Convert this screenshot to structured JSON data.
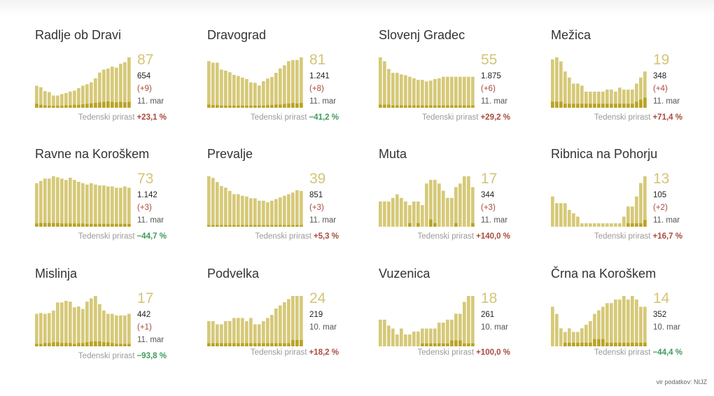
{
  "source": "vir podatkov: NIJZ",
  "growth_label": "Tedenski prirast",
  "colors": {
    "bar": "#d6c978",
    "bar_dark": "#b9a326",
    "up": "#a94a3c",
    "down": "#3f9a5b"
  },
  "cards": [
    {
      "title": "Radlje ob Dravi",
      "big": "87",
      "total": "654",
      "delta": "(+9)",
      "date": "11. mar",
      "growth": "+23,1 %",
      "trend": "up"
    },
    {
      "title": "Dravograd",
      "big": "81",
      "total": "1.241",
      "delta": "(+8)",
      "date": "11. mar",
      "growth": "−41,2 %",
      "trend": "down"
    },
    {
      "title": "Slovenj Gradec",
      "big": "55",
      "total": "1.875",
      "delta": "(+6)",
      "date": "11. mar",
      "growth": "+29,2 %",
      "trend": "up"
    },
    {
      "title": "Mežica",
      "big": "19",
      "total": "348",
      "delta": "(+4)",
      "date": "11. mar",
      "growth": "+71,4 %",
      "trend": "up"
    },
    {
      "title": "Ravne na Koroškem",
      "big": "73",
      "total": "1.142",
      "delta": "(+3)",
      "date": "11. mar",
      "growth": "−44,7 %",
      "trend": "down"
    },
    {
      "title": "Prevalje",
      "big": "39",
      "total": "851",
      "delta": "(+3)",
      "date": "11. mar",
      "growth": "+5,3 %",
      "trend": "up"
    },
    {
      "title": "Muta",
      "big": "17",
      "total": "344",
      "delta": "(+3)",
      "date": "11. mar",
      "growth": "+140,0 %",
      "trend": "up"
    },
    {
      "title": "Ribnica na Pohorju",
      "big": "13",
      "total": "105",
      "delta": "(+2)",
      "date": "11. mar",
      "growth": "+16,7 %",
      "trend": "up"
    },
    {
      "title": "Mislinja",
      "big": "17",
      "total": "442",
      "delta": "(+1)",
      "date": "11. mar",
      "growth": "−93,8 %",
      "trend": "down"
    },
    {
      "title": "Podvelka",
      "big": "24",
      "total": "219",
      "delta": "",
      "date": "10. mar",
      "growth": "+18,2 %",
      "trend": "up"
    },
    {
      "title": "Vuzenica",
      "big": "18",
      "total": "261",
      "delta": "",
      "date": "10. mar",
      "growth": "+100,0 %",
      "trend": "up"
    },
    {
      "title": "Črna na Koroškem",
      "big": "14",
      "total": "352",
      "delta": "",
      "date": "10. mar",
      "growth": "−44,4 %",
      "trend": "down"
    }
  ],
  "chart_data": [
    {
      "type": "bar",
      "series": [
        {
          "values": [
            45,
            42,
            34,
            32,
            25,
            25,
            28,
            30,
            33,
            35,
            40,
            45,
            48,
            52,
            60,
            72,
            78,
            80,
            84,
            82,
            90,
            93,
            103
          ]
        },
        {
          "values": [
            8,
            6,
            5,
            4,
            4,
            4,
            4,
            5,
            5,
            6,
            6,
            7,
            8,
            9,
            10,
            11,
            12,
            13,
            12,
            11,
            12,
            11,
            12
          ]
        }
      ]
    },
    {
      "type": "bar",
      "series": [
        {
          "values": [
            88,
            85,
            85,
            72,
            70,
            67,
            62,
            60,
            57,
            54,
            48,
            47,
            42,
            50,
            55,
            58,
            66,
            74,
            80,
            88,
            90,
            90,
            95
          ]
        },
        {
          "values": [
            6,
            5,
            5,
            4,
            4,
            4,
            4,
            4,
            4,
            4,
            4,
            4,
            4,
            4,
            5,
            5,
            6,
            6,
            7,
            8,
            9,
            8,
            9
          ]
        }
      ]
    },
    {
      "type": "bar",
      "series": [
        {
          "values": [
            65,
            60,
            50,
            45,
            45,
            43,
            42,
            40,
            38,
            36,
            36,
            34,
            35,
            37,
            38,
            40,
            40,
            40,
            40,
            40,
            40,
            40,
            40
          ]
        },
        {
          "values": [
            4,
            4,
            4,
            3,
            3,
            3,
            3,
            3,
            3,
            3,
            3,
            3,
            3,
            3,
            3,
            3,
            3,
            3,
            3,
            3,
            3,
            3,
            3
          ]
        }
      ]
    },
    {
      "type": "bar",
      "series": [
        {
          "values": [
            24,
            25,
            23,
            18,
            15,
            12,
            12,
            11,
            8,
            8,
            8,
            8,
            8,
            9,
            9,
            8,
            10,
            9,
            9,
            9,
            12,
            15,
            18
          ]
        },
        {
          "values": [
            3,
            3,
            3,
            2,
            2,
            2,
            2,
            2,
            2,
            2,
            2,
            2,
            2,
            2,
            2,
            2,
            2,
            2,
            2,
            2,
            3,
            4,
            5
          ]
        }
      ]
    },
    {
      "type": "bar",
      "series": [
        {
          "values": [
            95,
            100,
            105,
            105,
            110,
            108,
            105,
            102,
            107,
            102,
            98,
            95,
            92,
            95,
            92,
            90,
            90,
            88,
            88,
            85,
            85,
            88,
            85
          ]
        },
        {
          "values": [
            7,
            8,
            8,
            8,
            8,
            8,
            7,
            7,
            7,
            7,
            7,
            7,
            6,
            6,
            6,
            6,
            6,
            6,
            6,
            6,
            6,
            6,
            6
          ]
        }
      ]
    },
    {
      "type": "bar",
      "series": [
        {
          "values": [
            62,
            60,
            55,
            50,
            48,
            44,
            40,
            40,
            38,
            37,
            35,
            35,
            32,
            32,
            30,
            32,
            34,
            36,
            38,
            40,
            42,
            45,
            44
          ]
        },
        {
          "values": [
            2,
            2,
            2,
            2,
            2,
            2,
            2,
            2,
            2,
            2,
            2,
            2,
            2,
            2,
            2,
            2,
            2,
            2,
            2,
            2,
            2,
            2,
            2
          ]
        }
      ]
    },
    {
      "type": "bar",
      "series": [
        {
          "values": [
            7,
            7,
            7,
            8,
            9,
            8,
            7,
            6,
            7,
            7,
            6,
            12,
            13,
            13,
            12,
            10,
            8,
            8,
            11,
            12,
            14,
            14,
            11
          ]
        },
        {
          "values": [
            0,
            0,
            0,
            0,
            0,
            0,
            0,
            1,
            0,
            1,
            0,
            0,
            2,
            1,
            0,
            0,
            0,
            0,
            1,
            0,
            0,
            0,
            1
          ]
        }
      ]
    },
    {
      "type": "bar",
      "series": [
        {
          "values": [
            9,
            7,
            7,
            7,
            5,
            4,
            3,
            1,
            1,
            1,
            1,
            1,
            1,
            1,
            1,
            1,
            1,
            3,
            6,
            6,
            9,
            13,
            15
          ]
        },
        {
          "values": [
            0,
            0,
            0,
            0,
            0,
            0,
            0,
            0,
            0,
            0,
            0,
            0,
            0,
            0,
            0,
            0,
            0,
            0,
            1,
            1,
            1,
            1,
            2
          ]
        }
      ]
    },
    {
      "type": "bar",
      "series": [
        {
          "values": [
            40,
            41,
            40,
            41,
            44,
            54,
            54,
            56,
            55,
            48,
            49,
            46,
            55,
            59,
            62,
            52,
            44,
            40,
            40,
            38,
            38,
            38,
            40
          ]
        },
        {
          "values": [
            3,
            3,
            4,
            4,
            5,
            5,
            4,
            4,
            4,
            3,
            4,
            4,
            5,
            6,
            6,
            6,
            5,
            5,
            4,
            3,
            3,
            3,
            3
          ]
        }
      ]
    },
    {
      "type": "bar",
      "series": [
        {
          "values": [
            8,
            8,
            7,
            7,
            8,
            8,
            9,
            9,
            9,
            8,
            9,
            7,
            7,
            8,
            9,
            10,
            12,
            13,
            14,
            15,
            16,
            16,
            16
          ]
        },
        {
          "values": [
            1,
            1,
            1,
            1,
            1,
            1,
            1,
            1,
            1,
            1,
            1,
            1,
            1,
            1,
            1,
            1,
            1,
            1,
            1,
            1,
            2,
            2,
            2
          ]
        }
      ]
    },
    {
      "type": "bar",
      "series": [
        {
          "values": [
            9,
            9,
            7,
            6,
            4,
            6,
            4,
            4,
            5,
            5,
            6,
            6,
            6,
            6,
            8,
            8,
            9,
            9,
            11,
            11,
            15,
            17,
            17
          ]
        },
        {
          "values": [
            0,
            0,
            0,
            0,
            0,
            0,
            0,
            0,
            0,
            0,
            1,
            1,
            1,
            1,
            1,
            1,
            1,
            2,
            2,
            2,
            1,
            1,
            1
          ]
        }
      ]
    },
    {
      "type": "bar",
      "series": [
        {
          "values": [
            11,
            9,
            5,
            4,
            5,
            4,
            4,
            5,
            6,
            7,
            9,
            10,
            11,
            12,
            12,
            13,
            13,
            14,
            13,
            14,
            13,
            11,
            11
          ]
        },
        {
          "values": [
            0,
            0,
            0,
            1,
            1,
            1,
            1,
            1,
            1,
            1,
            2,
            2,
            2,
            1,
            1,
            1,
            1,
            1,
            1,
            1,
            1,
            1,
            1
          ]
        }
      ]
    }
  ]
}
